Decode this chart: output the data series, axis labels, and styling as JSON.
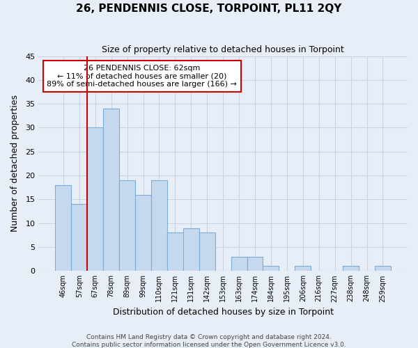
{
  "title": "26, PENDENNIS CLOSE, TORPOINT, PL11 2QY",
  "subtitle": "Size of property relative to detached houses in Torpoint",
  "xlabel": "Distribution of detached houses by size in Torpoint",
  "ylabel": "Number of detached properties",
  "bar_labels": [
    "46sqm",
    "57sqm",
    "67sqm",
    "78sqm",
    "89sqm",
    "99sqm",
    "110sqm",
    "121sqm",
    "131sqm",
    "142sqm",
    "153sqm",
    "163sqm",
    "174sqm",
    "184sqm",
    "195sqm",
    "206sqm",
    "216sqm",
    "227sqm",
    "238sqm",
    "248sqm",
    "259sqm"
  ],
  "bar_heights": [
    18,
    14,
    30,
    34,
    19,
    16,
    19,
    8,
    9,
    8,
    0,
    3,
    3,
    1,
    0,
    1,
    0,
    0,
    1,
    0,
    1
  ],
  "bar_color": "#c5d8ee",
  "bar_edge_color": "#7aaed6",
  "ylim": [
    0,
    45
  ],
  "yticks": [
    0,
    5,
    10,
    15,
    20,
    25,
    30,
    35,
    40,
    45
  ],
  "property_line_x": 1.5,
  "property_line_color": "#cc0000",
  "annotation_title": "26 PENDENNIS CLOSE: 62sqm",
  "annotation_line1": "← 11% of detached houses are smaller (20)",
  "annotation_line2": "89% of semi-detached houses are larger (166) →",
  "footer1": "Contains HM Land Registry data © Crown copyright and database right 2024.",
  "footer2": "Contains public sector information licensed under the Open Government Licence v3.0.",
  "background_color": "#e8eef7",
  "plot_background": "#e8eef7",
  "grid_color": "#c8d4e4"
}
